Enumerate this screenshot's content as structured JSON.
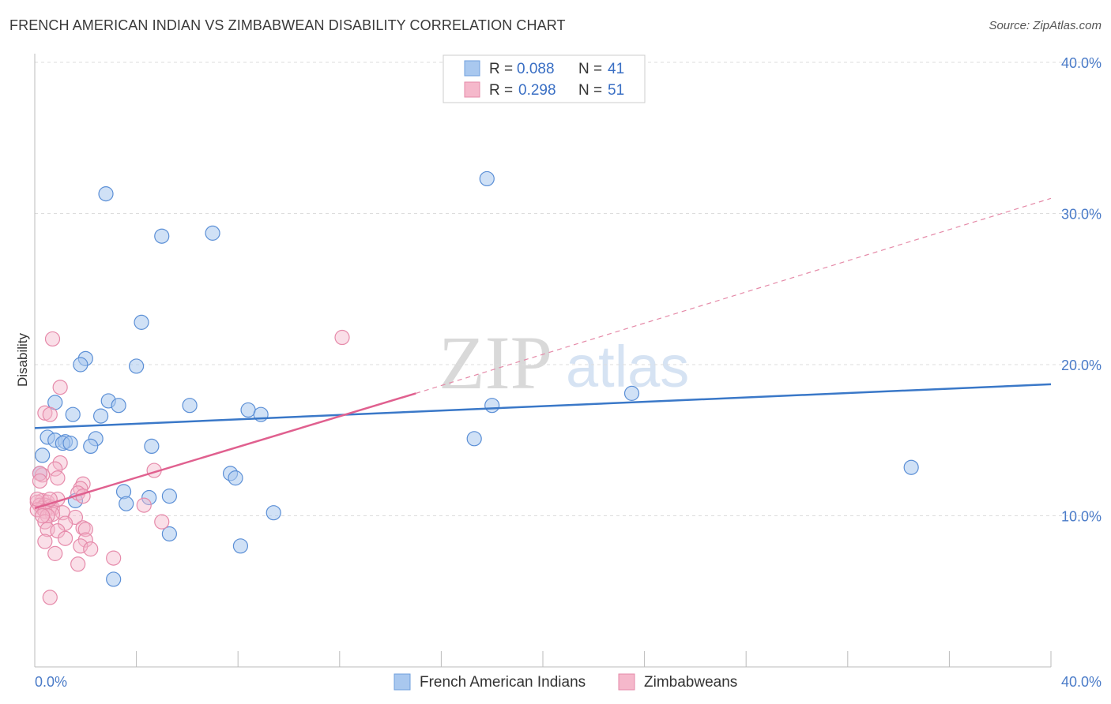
{
  "title": "FRENCH AMERICAN INDIAN VS ZIMBABWEAN DISABILITY CORRELATION CHART",
  "source": "Source: ZipAtlas.com",
  "watermark": {
    "zip": "ZIP",
    "atlas": "atlas"
  },
  "colors": {
    "blue": "#3a78c8",
    "blue_fill": "#a9c8ef",
    "pink": "#e0608f",
    "pink_fill": "#f5b8cb",
    "tick": "#4a7bc8"
  },
  "legend": {
    "rows": [
      {
        "r_label": "R =",
        "r_value": "0.088",
        "n_label": "N =",
        "n_value": "41"
      },
      {
        "r_label": "R =",
        "r_value": "0.298",
        "n_label": "N =",
        "n_value": "51"
      }
    ]
  },
  "chart_data": {
    "type": "scatter",
    "title": "FRENCH AMERICAN INDIAN VS ZIMBABWEAN DISABILITY CORRELATION CHART",
    "xlabel": "",
    "ylabel": "Disability",
    "xlim": [
      0,
      40
    ],
    "ylim": [
      0,
      40
    ],
    "x_tick_labels": [
      "0.0%",
      "40.0%"
    ],
    "y_tick_labels": [
      "10.0%",
      "20.0%",
      "30.0%",
      "40.0%"
    ],
    "y_ticks": [
      10,
      20,
      30,
      40
    ],
    "grid": true,
    "series": [
      {
        "name": "French American Indians",
        "r": 0.088,
        "n": 41,
        "trend": {
          "x": [
            0,
            40
          ],
          "y": [
            15.8,
            18.7
          ],
          "style": "solid"
        },
        "points": [
          [
            2.8,
            31.3
          ],
          [
            5.0,
            28.5
          ],
          [
            7.0,
            28.7
          ],
          [
            17.8,
            32.3
          ],
          [
            4.2,
            22.8
          ],
          [
            2.0,
            20.4
          ],
          [
            1.8,
            20.0
          ],
          [
            4.0,
            19.9
          ],
          [
            2.9,
            17.6
          ],
          [
            3.3,
            17.3
          ],
          [
            0.8,
            17.5
          ],
          [
            6.1,
            17.3
          ],
          [
            1.5,
            16.7
          ],
          [
            2.6,
            16.6
          ],
          [
            8.4,
            17.0
          ],
          [
            8.9,
            16.7
          ],
          [
            18.0,
            17.3
          ],
          [
            23.5,
            18.1
          ],
          [
            0.5,
            15.2
          ],
          [
            0.8,
            15.0
          ],
          [
            1.2,
            14.9
          ],
          [
            1.1,
            14.8
          ],
          [
            1.4,
            14.8
          ],
          [
            2.4,
            15.1
          ],
          [
            2.2,
            14.6
          ],
          [
            4.6,
            14.6
          ],
          [
            17.3,
            15.1
          ],
          [
            0.3,
            14.0
          ],
          [
            0.2,
            12.8
          ],
          [
            7.7,
            12.8
          ],
          [
            7.9,
            12.5
          ],
          [
            34.5,
            13.2
          ],
          [
            3.5,
            11.6
          ],
          [
            3.6,
            10.8
          ],
          [
            4.5,
            11.2
          ],
          [
            5.3,
            11.3
          ],
          [
            1.6,
            11.0
          ],
          [
            9.4,
            10.2
          ],
          [
            5.3,
            8.8
          ],
          [
            8.1,
            8.0
          ],
          [
            3.1,
            5.8
          ]
        ]
      },
      {
        "name": "Zimbabweans",
        "r": 0.298,
        "n": 51,
        "trend": {
          "x": [
            0,
            15
          ],
          "y": [
            10.5,
            18.1
          ],
          "style": "solid",
          "extended": {
            "x": [
              15,
              40
            ],
            "y": [
              18.1,
              31.0
            ]
          },
          "extended_style": "dashed"
        },
        "points": [
          [
            0.7,
            21.7
          ],
          [
            12.1,
            21.8
          ],
          [
            1.0,
            18.5
          ],
          [
            0.4,
            16.8
          ],
          [
            0.6,
            16.7
          ],
          [
            1.0,
            13.5
          ],
          [
            0.8,
            13.1
          ],
          [
            4.7,
            13.0
          ],
          [
            0.3,
            12.7
          ],
          [
            0.9,
            12.5
          ],
          [
            1.9,
            12.1
          ],
          [
            1.8,
            11.8
          ],
          [
            1.7,
            11.5
          ],
          [
            1.9,
            11.3
          ],
          [
            0.3,
            11.0
          ],
          [
            0.1,
            10.9
          ],
          [
            0.5,
            10.9
          ],
          [
            0.2,
            10.7
          ],
          [
            0.4,
            10.7
          ],
          [
            0.6,
            10.6
          ],
          [
            0.3,
            10.5
          ],
          [
            0.7,
            10.5
          ],
          [
            0.1,
            10.4
          ],
          [
            0.4,
            10.3
          ],
          [
            1.1,
            10.2
          ],
          [
            0.7,
            10.1
          ],
          [
            0.5,
            10.0
          ],
          [
            1.6,
            9.9
          ],
          [
            4.3,
            10.7
          ],
          [
            5.0,
            9.6
          ],
          [
            0.4,
            9.6
          ],
          [
            1.2,
            9.5
          ],
          [
            1.9,
            9.2
          ],
          [
            2.0,
            9.1
          ],
          [
            0.5,
            9.1
          ],
          [
            0.9,
            9.0
          ],
          [
            1.2,
            8.5
          ],
          [
            2.0,
            8.4
          ],
          [
            0.4,
            8.3
          ],
          [
            1.8,
            8.0
          ],
          [
            2.2,
            7.8
          ],
          [
            0.8,
            7.5
          ],
          [
            3.1,
            7.2
          ],
          [
            1.7,
            6.8
          ],
          [
            0.6,
            4.6
          ],
          [
            0.2,
            12.8
          ],
          [
            0.2,
            12.3
          ],
          [
            0.1,
            11.1
          ],
          [
            0.9,
            11.1
          ],
          [
            0.3,
            10.0
          ],
          [
            0.6,
            11.1
          ]
        ]
      }
    ]
  }
}
